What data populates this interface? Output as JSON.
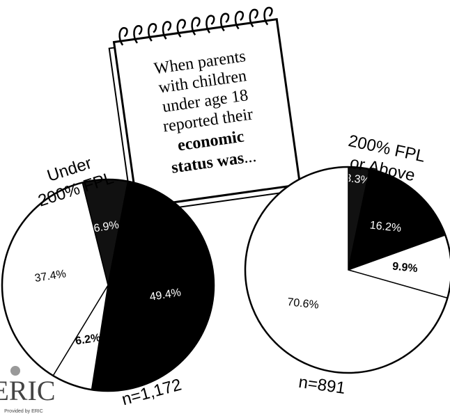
{
  "chart_data": [
    {
      "type": "pie",
      "title_lines": [
        "Under",
        "200% FPL"
      ],
      "annotation": "n=1,172",
      "values": [
        6.9,
        49.4,
        6.2,
        37.4
      ],
      "value_labels": [
        "6.9%",
        "49.4%",
        "6.2%",
        "37.4%"
      ],
      "colors": [
        "#111111",
        "#000000",
        "#ffffff",
        "#ffffff"
      ],
      "label_colors": [
        "#ffffff",
        "#ffffff",
        "#000000",
        "#000000"
      ]
    },
    {
      "type": "pie",
      "title_lines": [
        "200% FPL",
        "or Above"
      ],
      "annotation": "n=891",
      "values": [
        3.3,
        16.2,
        9.9,
        70.6
      ],
      "value_labels": [
        "3.3%",
        "16.2%",
        "9.9%",
        "70.6%"
      ],
      "colors": [
        "#111111",
        "#000000",
        "#ffffff",
        "#ffffff"
      ],
      "label_colors": [
        "#ffffff",
        "#ffffff",
        "#000000",
        "#000000"
      ]
    }
  ],
  "note": {
    "lines": [
      "When parents",
      "with children",
      "under age 18",
      "reported their"
    ],
    "bold_line": "economic",
    "last_bold": "status was",
    "last_rest": "..."
  },
  "logo": {
    "text": "ERIC",
    "caption": "Provided by ERIC"
  }
}
